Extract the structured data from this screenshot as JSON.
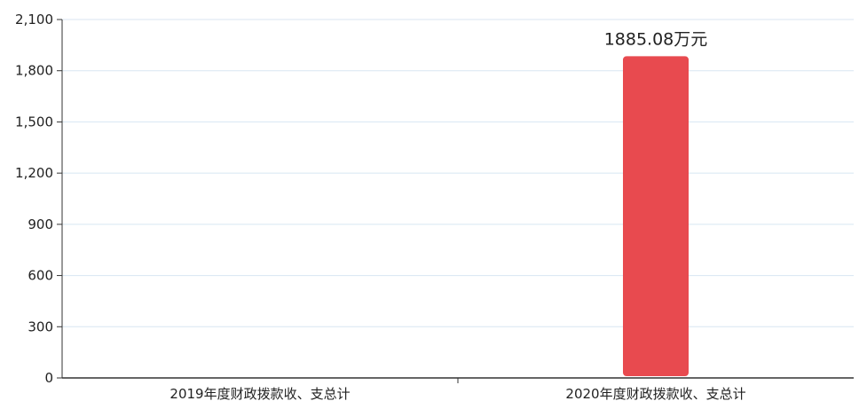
{
  "chart_data": {
    "type": "bar",
    "categories": [
      "2019年度财政拨款收、支总计",
      "2020年度财政拨款收、支总计"
    ],
    "values": [
      0,
      1885.08
    ],
    "data_labels": [
      "",
      "1885.08万元"
    ],
    "ylim": [
      0,
      2100
    ],
    "yticks": [
      0,
      300,
      600,
      900,
      1200,
      1500,
      1800,
      2100
    ],
    "ytick_labels": [
      "0",
      "300",
      "600",
      "900",
      "1,200",
      "1,500",
      "1,800",
      "2,100"
    ],
    "grid": true,
    "colors": {
      "bar": "#e84a4f",
      "grid": "#d8e6f2",
      "axis": "#333333"
    }
  }
}
